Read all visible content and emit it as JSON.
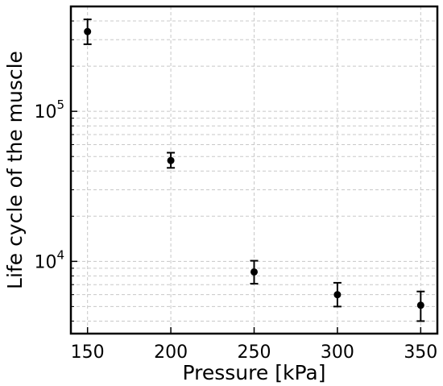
{
  "chart_data": {
    "type": "scatter",
    "xlabel": "Pressure [kPa]",
    "ylabel": "Life cycle of the muscle",
    "xlim": [
      140,
      360
    ],
    "ylim": [
      3300,
      500000
    ],
    "yscale": "log",
    "grid": true,
    "x_ticks": [
      150,
      200,
      250,
      300,
      350
    ],
    "x_tick_labels": [
      "150",
      "200",
      "250",
      "300",
      "350"
    ],
    "y_ticks": [
      {
        "value": 10000,
        "base": "10",
        "exp": "4"
      },
      {
        "value": 100000,
        "base": "10",
        "exp": "5"
      }
    ],
    "points": [
      {
        "x": 150,
        "y": 340000,
        "err_low": 280000,
        "err_high": 410000
      },
      {
        "x": 200,
        "y": 47000,
        "err_low": 42000,
        "err_high": 53000
      },
      {
        "x": 250,
        "y": 8500,
        "err_low": 7100,
        "err_high": 10100
      },
      {
        "x": 300,
        "y": 6000,
        "err_low": 5000,
        "err_high": 7200
      },
      {
        "x": 350,
        "y": 5100,
        "err_low": 4000,
        "err_high": 6300
      }
    ],
    "marker_color": "#000000",
    "grid_color": "#c8c8c8"
  }
}
